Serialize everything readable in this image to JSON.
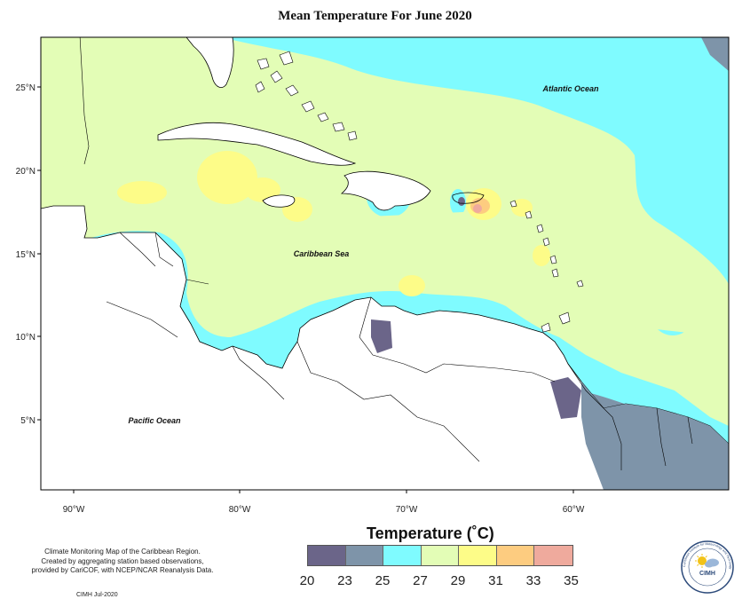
{
  "title": "Mean Temperature For June 2020",
  "map": {
    "lat_ticks": [
      "25°N",
      "20°N",
      "15°N",
      "10°N",
      "5°N"
    ],
    "lon_ticks": [
      "90°W",
      "80°W",
      "70°W",
      "60°W"
    ],
    "labels": {
      "atlantic": "Atlantic Ocean",
      "caribbean": "Caribbean Sea",
      "pacific": "Pacific Ocean"
    },
    "colors": {
      "ocean_base": "#7ffbff",
      "land": "#ffffff",
      "coastline": "#000000"
    }
  },
  "legend": {
    "title": "Temperature (˚C)",
    "ticks": [
      "20",
      "23",
      "25",
      "27",
      "29",
      "31",
      "33",
      "35"
    ],
    "bins": [
      {
        "range": "20-23",
        "color": "#6b6589"
      },
      {
        "range": "23-25",
        "color": "#7e94a9"
      },
      {
        "range": "25-27",
        "color": "#7ffbff"
      },
      {
        "range": "27-29",
        "color": "#e3fdb6"
      },
      {
        "range": "29-31",
        "color": "#fdfc88"
      },
      {
        "range": "31-33",
        "color": "#fdcc80"
      },
      {
        "range": "33-35",
        "color": "#efaa9d"
      }
    ]
  },
  "credit": {
    "lines": [
      "Climate Monitoring Map of the Caribbean Region.",
      "Created by aggregating station based observations,",
      "provided by CariCOF, with NCEP/NCAR Reanalysis Data."
    ],
    "stamp": "CIMH Jul-2020"
  },
  "logo": {
    "text": "CIMH",
    "ring_text": "Caribbean Institute for Meteorology and Hydrology"
  }
}
